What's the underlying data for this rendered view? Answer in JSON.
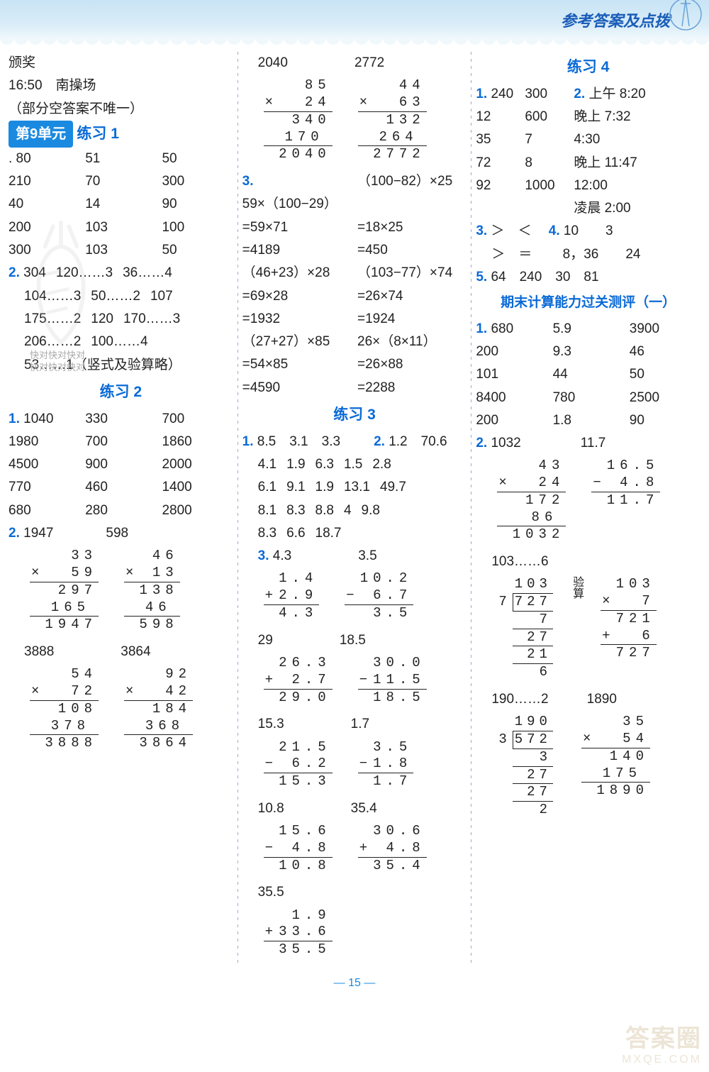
{
  "header": {
    "title": "参考答案及点拨"
  },
  "col1": {
    "l1": "颁奖",
    "l2": "16:50　南操场",
    "l3": "（部分空答案不唯一）",
    "unit9": "第9单元",
    "p1_title": "练习 1",
    "p1": {
      "t": [
        [
          "80",
          "51",
          "50"
        ],
        [
          "210",
          "70",
          "300"
        ],
        [
          "40",
          "14",
          "90"
        ],
        [
          "200",
          "103",
          "100"
        ],
        [
          "300",
          "103",
          "50"
        ]
      ],
      "r2": [
        "304",
        "120……3",
        "36……4",
        "104……3",
        "50……2",
        "107",
        "175……2",
        "120",
        "170……3",
        "206……2",
        "100……4",
        "53……1（竖式及验算略）"
      ]
    },
    "p2_title": "练习 2",
    "p2_1": [
      [
        "1040",
        "330",
        "700"
      ],
      [
        "1980",
        "700",
        "1860"
      ],
      [
        "4500",
        "900",
        "2000"
      ],
      [
        "770",
        "460",
        "1400"
      ],
      [
        "680",
        "280",
        "2800"
      ]
    ],
    "p2_2": {
      "a": "1947",
      "b": "598",
      "c": "3888",
      "d": "3864"
    },
    "v": {
      "m1": {
        "a": "33",
        "b": "59",
        "p1": "297",
        "p2": "165",
        "r": "1947",
        "op": "×"
      },
      "m2": {
        "a": "46",
        "b": "13",
        "p1": "138",
        "p2": "46",
        "r": "598",
        "op": "×"
      },
      "m3": {
        "a": "54",
        "b": "72",
        "p1": "108",
        "p2": "378",
        "r": "3888",
        "op": "×"
      },
      "m4": {
        "a": "92",
        "b": "42",
        "p1": "184",
        "p2": "368",
        "r": "3864",
        "op": "×"
      }
    }
  },
  "col2": {
    "head": {
      "a": "2040",
      "b": "2772"
    },
    "v": {
      "m1": {
        "a": "85",
        "b": "24",
        "p1": "340",
        "p2": "170",
        "r": "2040",
        "op": "×"
      },
      "m2": {
        "a": "44",
        "b": "63",
        "p1": "132",
        "p2": "264",
        "r": "2772",
        "op": "×"
      }
    },
    "q3_lines": [
      "59×（100−29）",
      "（100−82）×25",
      "=59×71",
      "=18×25",
      "=4189",
      "=450",
      "（46+23）×28",
      "（103−77）×74",
      "=69×28",
      "=26×74",
      "=1932",
      "=1924",
      "（27+27）×85",
      "26×（8×11）",
      "=54×85",
      "=26×88",
      "=4590",
      "=2288"
    ],
    "p3_title": "练习 3",
    "p3_1": [
      "8.5",
      "3.1",
      "3.3"
    ],
    "p3_2": [
      "1.2",
      "70.6"
    ],
    "p3_rows": [
      [
        "4.1",
        "1.9",
        "6.3",
        "1.5",
        "2.8"
      ],
      [
        "6.1",
        "9.1",
        "1.9",
        "13.1",
        "49.7"
      ],
      [
        "8.1",
        "8.3",
        "8.8",
        "4",
        "9.8"
      ],
      [
        "8.3",
        "6.6",
        "18.7",
        "",
        ""
      ]
    ],
    "p3_3": {
      "pairs": [
        {
          "r": "4.3",
          "a": "1.4",
          "b": "2.9",
          "op": "+"
        },
        {
          "r": "3.5",
          "a": "10.2",
          "b": "6.7",
          "op": "−"
        },
        {
          "r": "29",
          "a": "26.3",
          "b": "2.7",
          "op": "+",
          "res": "29.0"
        },
        {
          "r": "18.5",
          "a": "30.0",
          "b": "11.5",
          "op": "−"
        },
        {
          "r": "15.3",
          "a": "21.5",
          "b": "6.2",
          "op": "−"
        },
        {
          "r": "1.7",
          "a": "3.5",
          "b": "1.8",
          "op": "−"
        },
        {
          "r": "10.8",
          "a": "15.6",
          "b": "4.8",
          "op": "−"
        },
        {
          "r": "35.4",
          "a": "30.6",
          "b": "4.8",
          "op": "+"
        },
        {
          "r": "35.5",
          "a": "1.9",
          "b": "33.6",
          "op": "+"
        }
      ]
    }
  },
  "col3": {
    "p4_title": "练习 4",
    "p4_1l": [
      [
        "240",
        "300"
      ],
      [
        "12",
        "600"
      ],
      [
        "35",
        "7"
      ],
      [
        "72",
        "8"
      ],
      [
        "92",
        "1000"
      ]
    ],
    "p4_2": [
      "上午 8:20",
      "晚上 7:32",
      "4:30",
      "晚上 11:47",
      "12:00",
      "凌晨 2:00"
    ],
    "p4_3": "＞　＜",
    "p4_4": "10　　3",
    "p4_3b": "＞　＝",
    "p4_4b": "8，36　　24",
    "p4_5": "64　240　30　81",
    "final_title": "期末计算能力过关测评（一）",
    "f1": [
      [
        "680",
        "5.9",
        "3900"
      ],
      [
        "200",
        "9.3",
        "46"
      ],
      [
        "101",
        "44",
        "50"
      ],
      [
        "8400",
        "780",
        "2500"
      ],
      [
        "200",
        "1.8",
        "90"
      ]
    ],
    "f2": {
      "a": "1032",
      "b": "11.7",
      "c": "103……6",
      "d": "190……2",
      "e": "1890"
    },
    "v": {
      "m1": {
        "a": "43",
        "b": "24",
        "p1": "172",
        "p2": "86",
        "r": "1032",
        "op": "×"
      },
      "s1": {
        "a": "16.5",
        "b": "4.8",
        "r": "11.7",
        "op": "−"
      },
      "d1": {
        "dv": "7",
        "dd": "727",
        "q": "103",
        "s": [
          "7",
          "27",
          "21",
          "6"
        ]
      },
      "chk": {
        "a": "103",
        "b": "7",
        "p": "721",
        "add": "6",
        "r": "727",
        "lab": "验算",
        "op": "×",
        "op2": "+"
      },
      "d2": {
        "dv": "3",
        "dd": "572",
        "q": "190",
        "s": [
          "3",
          "27",
          "27",
          "2"
        ]
      },
      "m2": {
        "a": "35",
        "b": "54",
        "p1": "140",
        "p2": "175",
        "r": "1890",
        "op": "×"
      }
    }
  },
  "page": "15",
  "colors": {
    "blue": "#0a6ad6",
    "banner": "#c8e4f5",
    "tag": "#1a8ae0",
    "text": "#222"
  }
}
